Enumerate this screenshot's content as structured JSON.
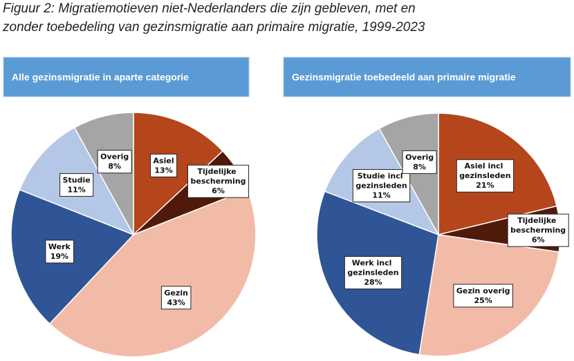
{
  "title": "Figuur 2: Migratiemotieven niet-Nederlanders die zijn gebleven, met en zonder toebedeling van gezinsmigratie aan primaire migratie, 1999-2023",
  "chart_data": [
    {
      "type": "pie",
      "title": "Alle gezinsmigratie in aparte categorie",
      "categories": [
        "Asiel",
        "Tijdelijke bescherming",
        "Gezin",
        "Werk",
        "Studie",
        "Overig"
      ],
      "values": [
        13,
        6,
        43,
        19,
        11,
        8
      ],
      "value_labels": [
        "13%",
        "6%",
        "43%",
        "19%",
        "11%",
        "8%"
      ],
      "colors": [
        "#b5451b",
        "#4f1a0a",
        "#f2bba8",
        "#2f5597",
        "#b4c7e7",
        "#a5a5a5"
      ]
    },
    {
      "type": "pie",
      "title": "Gezinsmigratie toebedeeld aan primaire migratie",
      "categories": [
        "Asiel incl gezinsleden",
        "Tijdelijke bescherming",
        "Gezin overig",
        "Werk incl gezinsleden",
        "Studie incl gezinsleden",
        "Overig"
      ],
      "values": [
        21,
        6,
        25,
        28,
        11,
        8
      ],
      "value_labels": [
        "21%",
        "6%",
        "25%",
        "28%",
        "11%",
        "8%"
      ],
      "colors": [
        "#b5451b",
        "#4f1a0a",
        "#f2bba8",
        "#2f5597",
        "#b4c7e7",
        "#a5a5a5"
      ]
    }
  ]
}
